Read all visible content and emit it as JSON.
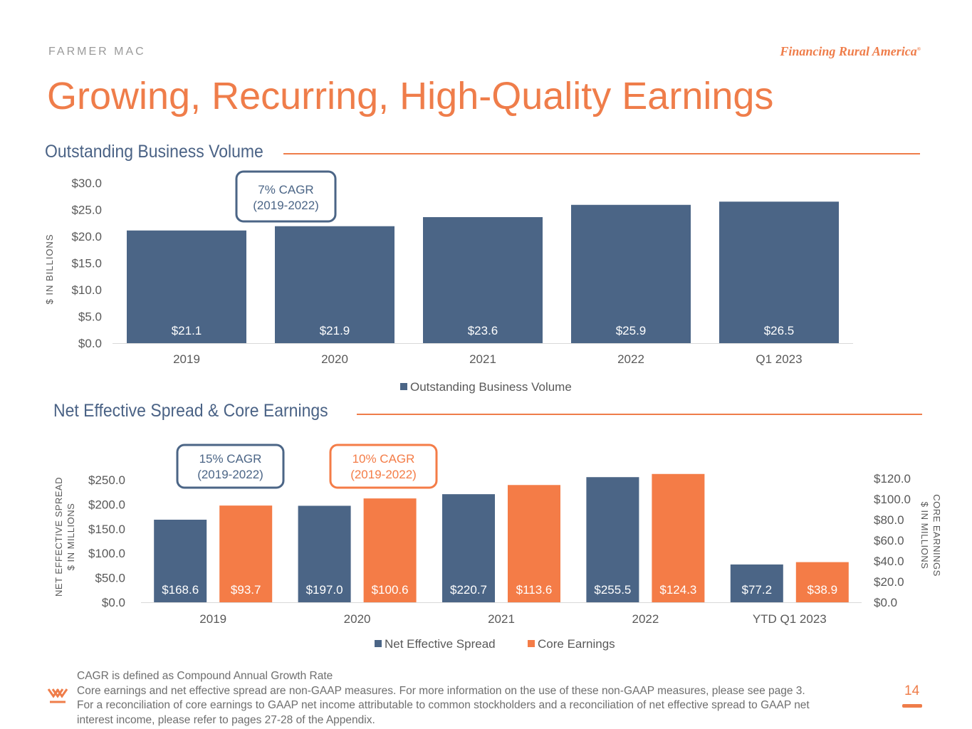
{
  "header": {
    "brand": "FARMER MAC",
    "tagline": "Financing Rural America",
    "tagline_mark": "®",
    "title": "Growing, Recurring, High-Quality Earnings"
  },
  "colors": {
    "accent": "#ef7d4a",
    "navy": "#4b6586",
    "orange": "#f47c47"
  },
  "chart_data": [
    {
      "type": "bar",
      "section_title": "Outstanding Business Volume",
      "categories": [
        "2019",
        "2020",
        "2021",
        "2022",
        "Q1 2023"
      ],
      "series": [
        {
          "name": "Outstanding Business Volume",
          "values": [
            21.1,
            21.9,
            23.6,
            25.9,
            26.5
          ],
          "labels": [
            "$21.1",
            "$21.9",
            "$23.6",
            "$25.9",
            "$26.5"
          ]
        }
      ],
      "ylabel": "$ IN BILLIONS",
      "ylim": [
        0,
        30
      ],
      "yticks": [
        "$0.0",
        "$5.0",
        "$10.0",
        "$15.0",
        "$20.0",
        "$25.0",
        "$30.0"
      ],
      "annotation": [
        "7% CAGR",
        "(2019-2022)"
      ],
      "legend": "bottom"
    },
    {
      "type": "bar",
      "section_title": "Net Effective Spread & Core Earnings",
      "categories": [
        "2019",
        "2020",
        "2021",
        "2022",
        "YTD Q1 2023"
      ],
      "series": [
        {
          "name": "Net Effective Spread",
          "axis": "left",
          "values": [
            168.6,
            197.0,
            220.7,
            255.5,
            77.2
          ],
          "labels": [
            "$168.6",
            "$197.0",
            "$220.7",
            "$255.5",
            "$77.2"
          ]
        },
        {
          "name": "Core Earnings",
          "axis": "right",
          "values": [
            93.7,
            100.6,
            113.6,
            124.3,
            38.9
          ],
          "labels": [
            "$93.7",
            "$100.6",
            "$113.6",
            "$124.3",
            "$38.9"
          ]
        }
      ],
      "ylabel_left": [
        "NET EFFECTIVE SPREAD",
        "$ IN MILLIONS"
      ],
      "ylabel_right": [
        "CORE EARNINGS",
        "$ IN MILLIONS"
      ],
      "ylim_left": [
        0,
        250
      ],
      "ylim_right": [
        0,
        120
      ],
      "yticks_left": [
        "$0.0",
        "$50.0",
        "$100.0",
        "$150.0",
        "$200.0",
        "$250.0"
      ],
      "yticks_right": [
        "$0.0",
        "$20.0",
        "$40.0",
        "$60.0",
        "$80.0",
        "$100.0",
        "$120.0"
      ],
      "annotations": [
        {
          "lines": [
            "15% CAGR",
            "(2019-2022)"
          ],
          "color": "#4b6586"
        },
        {
          "lines": [
            "10% CAGR",
            "(2019-2022)"
          ],
          "color": "#f47c47"
        }
      ],
      "legend": "bottom"
    }
  ],
  "footer": {
    "lines": [
      "CAGR is defined as Compound Annual Growth Rate",
      "Core earnings and net effective spread are non-GAAP measures.  For more information on the use of these non-GAAP measures, please see page 3.",
      "For a reconciliation of core earnings to GAAP net income attributable to common stockholders and a reconciliation of net effective spread to GAAP net",
      "interest income, please refer to pages 27-28 of the Appendix."
    ],
    "page_number": "14"
  }
}
